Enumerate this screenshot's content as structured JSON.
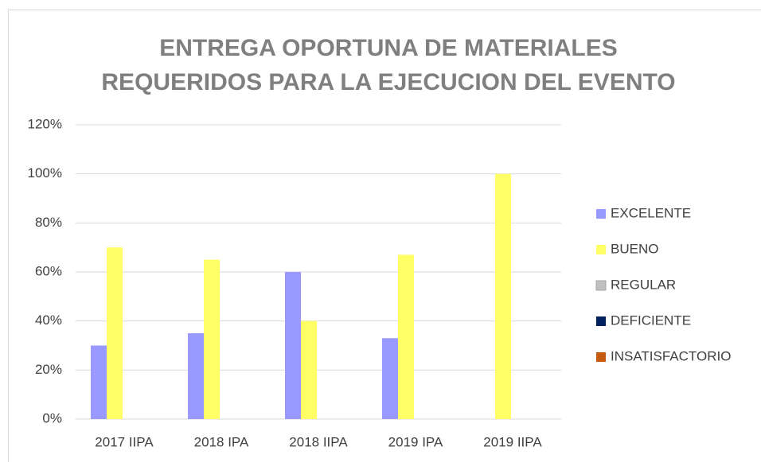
{
  "chart_data": {
    "type": "bar",
    "title": [
      "ENTREGA OPORTUNA DE MATERIALES",
      "REQUERIDOS PARA LA EJECUCION DEL EVENTO"
    ],
    "categories": [
      "2017 IIPA",
      "2018 IPA",
      "2018 IIPA",
      "2019 IPA",
      "2019 IIPA"
    ],
    "series": [
      {
        "name": "EXCELENTE",
        "color": "#9999ff",
        "values": [
          30,
          35,
          60,
          33,
          0
        ]
      },
      {
        "name": "BUENO",
        "color": "#ffff66",
        "values": [
          70,
          65,
          40,
          67,
          100
        ]
      },
      {
        "name": "REGULAR",
        "color": "#c0c0c0",
        "values": [
          0,
          0,
          0,
          0,
          0
        ]
      },
      {
        "name": "DEFICIENTE",
        "color": "#002060",
        "values": [
          0,
          0,
          0,
          0,
          0
        ]
      },
      {
        "name": "INSATISFACTORIO",
        "color": "#c55a11",
        "values": [
          0,
          0,
          0,
          0,
          0
        ]
      }
    ],
    "ylim": [
      0,
      120
    ],
    "yticks": [
      {
        "value": 0,
        "label": "0%"
      },
      {
        "value": 20,
        "label": "20%"
      },
      {
        "value": 40,
        "label": "40%"
      },
      {
        "value": 60,
        "label": "60%"
      },
      {
        "value": 80,
        "label": "80%"
      },
      {
        "value": 100,
        "label": "100%"
      },
      {
        "value": 120,
        "label": "120%"
      }
    ],
    "grid": true,
    "legend": "right"
  }
}
